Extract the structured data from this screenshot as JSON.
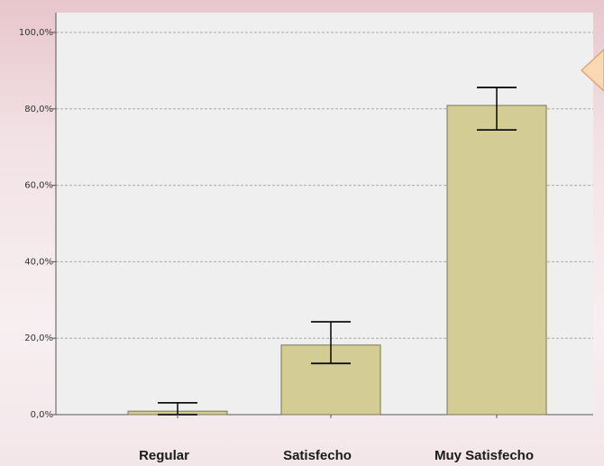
{
  "chart_data": {
    "type": "bar",
    "categories": [
      "Regular",
      "Satisfecho",
      "Muy Satisfecho"
    ],
    "values": [
      0.9,
      18.2,
      80.9
    ],
    "error_low": [
      0.0,
      13.4,
      74.5
    ],
    "error_high": [
      3.1,
      24.3,
      85.6
    ],
    "ylim": [
      0,
      100
    ],
    "yticks": [
      "0,0%",
      "20,0%",
      "40,0%",
      "60,0%",
      "80,0%",
      "100,0%"
    ],
    "xlabel": "",
    "ylabel": "",
    "title": "",
    "grid": true,
    "legend": "none"
  },
  "colors": {
    "bar_fill": "#d3cd95",
    "bar_stroke": "#7a7650",
    "plot_bg": "#efefef",
    "grid": "#a9a9a9",
    "error_bar": "#111111",
    "marker_fill": "#fbd8b4",
    "marker_stroke": "#e8a46a"
  }
}
